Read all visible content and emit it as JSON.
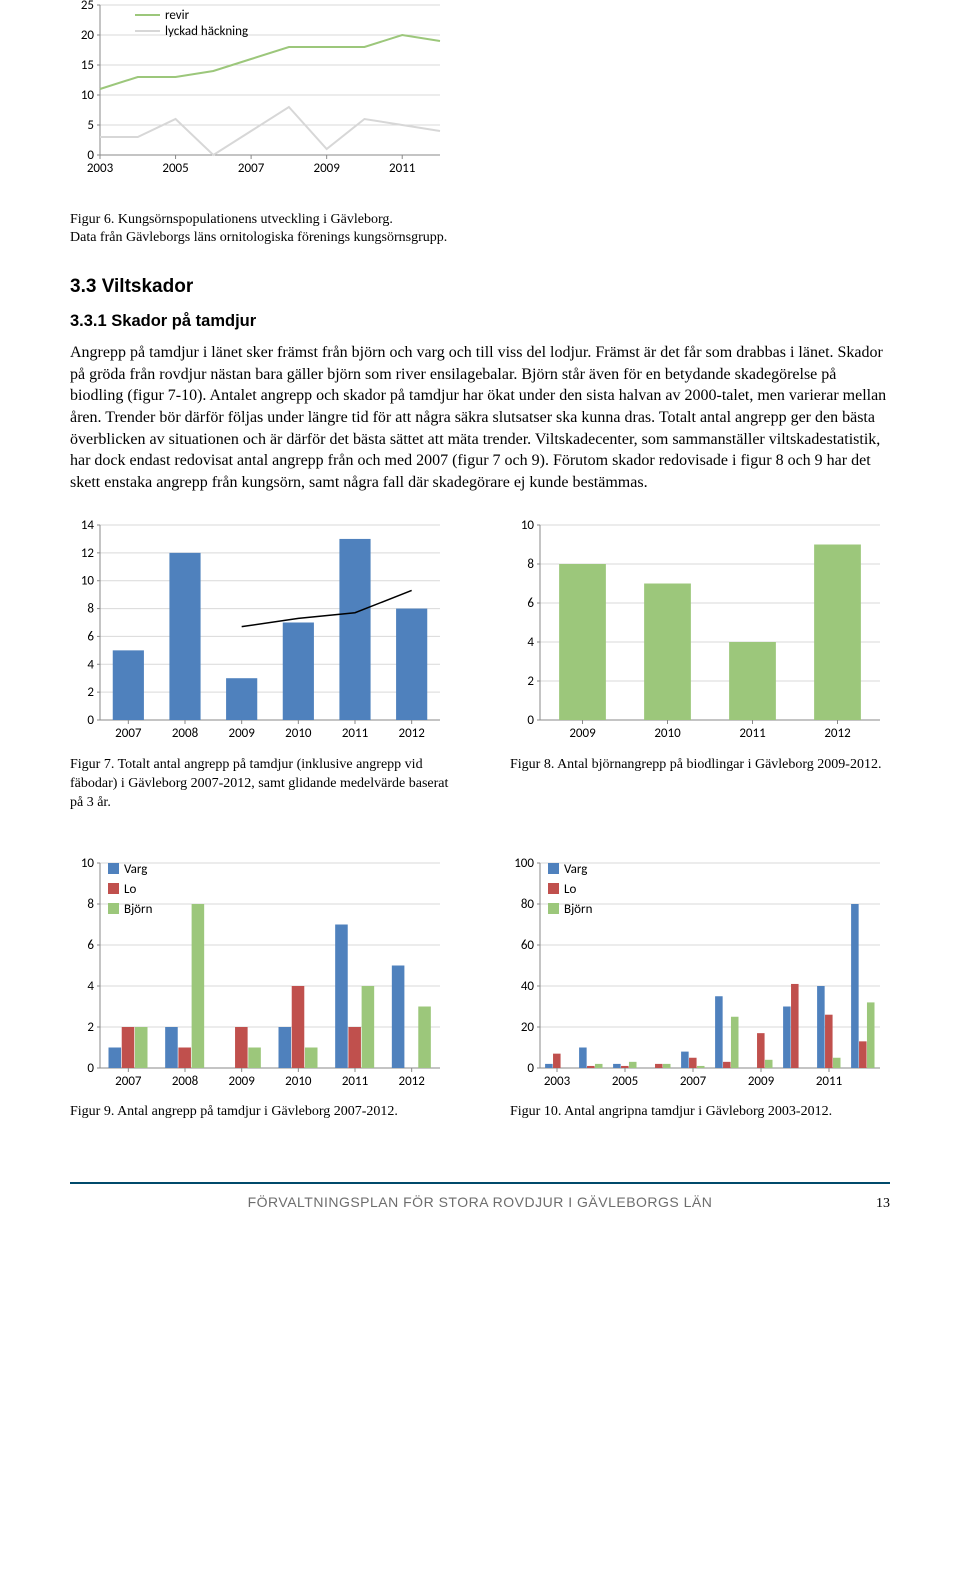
{
  "fig6": {
    "type": "line",
    "x_ticks": [
      "2003",
      "2005",
      "2007",
      "2009",
      "2011"
    ],
    "y_ticks": [
      0,
      5,
      10,
      15,
      20,
      25
    ],
    "x_values": [
      2003,
      2004,
      2005,
      2006,
      2007,
      2008,
      2009,
      2010,
      2011,
      2012
    ],
    "series": [
      {
        "name": "revir",
        "color": "#9cc77b",
        "width": 2,
        "values": [
          11,
          13,
          13,
          14,
          16,
          18,
          18,
          18,
          20,
          19
        ]
      },
      {
        "name": "lyckad häckning",
        "color": "#d7d7d7",
        "width": 2,
        "values": [
          3,
          3,
          6,
          0,
          4,
          8,
          1,
          6,
          5,
          4
        ]
      }
    ],
    "caption": "Figur 6. Kungsörnspopulationens utveckling i Gävleborg.\nData från Gävleborgs läns ornitologiska förenings kungsörnsgrupp."
  },
  "sec_heading": "3.3 Viltskador",
  "sub_heading": "3.3.1 Skador på tamdjur",
  "body": "Angrepp på tamdjur i länet sker främst från björn och varg och till viss del lodjur. Främst är det får som drabbas i länet. Skador på gröda från rovdjur nästan bara gäller björn som river ensilagebalar. Björn står även för en betydande skadegörelse på biodling (figur 7-10). Antalet angrepp och skador på tamdjur har ökat under den sista halvan av 2000-talet, men varierar mellan åren. Trender bör därför följas under längre tid för att några säkra slutsatser ska kunna dras. Totalt antal angrepp ger den bästa överblicken av situationen och är därför det bästa sättet att mäta trender. Viltskadecenter, som sammanställer viltskadestatistik, har dock endast redovisat antal angrepp från och med 2007 (figur 7 och 9). Förutom skador redovisade i figur 8 och 9 har det skett enstaka angrepp från kungsörn, samt några fall där skadegörare ej kunde bestämmas.",
  "fig7": {
    "type": "bar+line",
    "categories": [
      "2007",
      "2008",
      "2009",
      "2010",
      "2011",
      "2012"
    ],
    "y_ticks": [
      0,
      2,
      4,
      6,
      8,
      10,
      12,
      14
    ],
    "bars": {
      "color": "#4f81bd",
      "values": [
        5,
        12,
        3,
        7,
        13,
        8
      ]
    },
    "line": {
      "color": "#000000",
      "width": 1.5,
      "values": [
        null,
        null,
        6.7,
        7.3,
        7.7,
        9.3
      ]
    },
    "caption": "Figur 7. Totalt antal angrepp på tamdjur (inklusive angrepp vid fäbodar) i Gävleborg 2007-2012, samt glidande medelvärde baserat på 3 år."
  },
  "fig8": {
    "type": "bar",
    "categories": [
      "2009",
      "2010",
      "2011",
      "2012"
    ],
    "y_ticks": [
      0,
      2,
      4,
      6,
      8,
      10
    ],
    "bars": {
      "color": "#9cc77b",
      "values": [
        8,
        7,
        4,
        9
      ]
    },
    "caption": "Figur 8. Antal björnangrepp på biodlingar i Gävleborg 2009-2012."
  },
  "fig9": {
    "type": "grouped-bar",
    "categories": [
      "2007",
      "2008",
      "2009",
      "2010",
      "2011",
      "2012"
    ],
    "y_ticks": [
      0,
      2,
      4,
      6,
      8,
      10
    ],
    "legend": [
      {
        "name": "Varg",
        "color": "#4f81bd"
      },
      {
        "name": "Lo",
        "color": "#c0504d"
      },
      {
        "name": "Björn",
        "color": "#9cc77b"
      }
    ],
    "series": [
      {
        "name": "Varg",
        "color": "#4f81bd",
        "values": [
          1,
          2,
          0,
          2,
          7,
          5
        ]
      },
      {
        "name": "Lo",
        "color": "#c0504d",
        "values": [
          2,
          1,
          2,
          4,
          2,
          0
        ]
      },
      {
        "name": "Björn",
        "color": "#9cc77b",
        "values": [
          2,
          8,
          1,
          1,
          4,
          3
        ]
      }
    ],
    "caption": "Figur 9. Antal angrepp på tamdjur i Gävleborg 2007-2012."
  },
  "fig10": {
    "type": "grouped-bar",
    "categories": [
      "2003",
      "2005",
      "2007",
      "2009",
      "2011"
    ],
    "actual_x": [
      2003,
      2004,
      2005,
      2006,
      2007,
      2008,
      2009,
      2010,
      2011,
      2012
    ],
    "y_ticks": [
      0,
      20,
      40,
      60,
      80,
      100
    ],
    "legend": [
      {
        "name": "Varg",
        "color": "#4f81bd"
      },
      {
        "name": "Lo",
        "color": "#c0504d"
      },
      {
        "name": "Björn",
        "color": "#9cc77b"
      }
    ],
    "series": [
      {
        "name": "Varg",
        "color": "#4f81bd",
        "values": [
          2,
          10,
          2,
          0,
          8,
          35,
          0,
          30,
          40,
          80
        ]
      },
      {
        "name": "Lo",
        "color": "#c0504d",
        "values": [
          7,
          1,
          1,
          2,
          5,
          3,
          17,
          41,
          26,
          13
        ]
      },
      {
        "name": "Björn",
        "color": "#9cc77b",
        "values": [
          0,
          2,
          3,
          2,
          1,
          25,
          4,
          0,
          5,
          32
        ]
      }
    ],
    "caption": "Figur 10. Antal angripna tamdjur i Gävleborg 2003-2012."
  },
  "footer_text": "FÖRVALTNINGSPLAN FÖR STORA ROVDJUR I GÄVLEBORGS LÄN",
  "page_number": "13"
}
